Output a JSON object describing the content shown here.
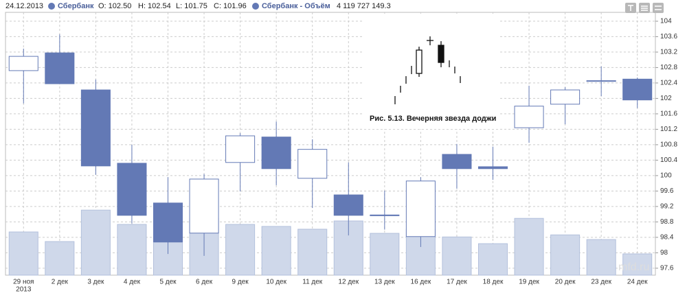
{
  "chart_data": {
    "type": "candlestick",
    "header": {
      "date": "24.12.2013",
      "open": "O: 102.50",
      "high": "H: 102.54",
      "low": "L: 101.75",
      "close": "C: 101.96",
      "volume": "4 119 727 149.3"
    },
    "categories": [
      "29 ноя",
      "2 дек",
      "3 дек",
      "4 дек",
      "5 дек",
      "6 дек",
      "9 дек",
      "10 дек",
      "11 дек",
      "12 дек",
      "13 дек",
      "16 дек",
      "17 дек",
      "18 дек",
      "19 дек",
      "20 дек",
      "23 дек",
      "24 дек"
    ],
    "first_category_year": "2013",
    "series": [
      {
        "name": "Сбербанк",
        "color": "#6379b5",
        "up_color": "#ffffff",
        "open": [
          102.72,
          103.18,
          102.22,
          100.32,
          99.29,
          98.51,
          100.34,
          101.0,
          99.93,
          99.5,
          98.98,
          98.42,
          100.55,
          100.23,
          101.24,
          101.85,
          102.44,
          102.5
        ],
        "high": [
          103.29,
          103.66,
          102.49,
          100.8,
          99.96,
          100.04,
          101.1,
          101.4,
          100.94,
          100.34,
          99.61,
          99.96,
          100.82,
          100.75,
          102.33,
          102.29,
          102.83,
          102.54
        ],
        "low": [
          101.87,
          102.38,
          100.02,
          98.76,
          97.97,
          97.92,
          99.59,
          99.75,
          99.16,
          98.45,
          98.6,
          98.15,
          99.66,
          99.89,
          100.85,
          101.33,
          102.06,
          101.75
        ],
        "close": [
          103.09,
          102.38,
          100.25,
          98.97,
          98.28,
          99.91,
          101.03,
          100.18,
          100.68,
          98.97,
          98.96,
          99.86,
          100.18,
          100.18,
          101.8,
          102.22,
          102.46,
          101.96
        ]
      },
      {
        "name": "Сбербанк - Объём",
        "color": "#cfd8ea",
        "axis": "y2",
        "values": [
          8370000000,
          6510000000,
          12600000000,
          9830000000,
          6380000000,
          11000000000,
          9830000000,
          9440000000,
          8900000000,
          10500000000,
          8100000000,
          8900000000,
          7400000000,
          6100000000,
          11000000000,
          7800000000,
          6900000000,
          4119727149.3
        ]
      }
    ],
    "ylim": [
      97.42,
      104.23
    ],
    "yticks": [
      97.6,
      98,
      98.4,
      98.8,
      99.2,
      99.6,
      100,
      100.4,
      100.8,
      101.2,
      101.6,
      102,
      102.4,
      102.8,
      103.2,
      103.6,
      104
    ],
    "y2lim": [
      0,
      50900000000
    ],
    "grid": true,
    "inset_caption": "Рис. 5.13. Вечерняя звезда доджи",
    "watermark": "mfd.ru"
  }
}
